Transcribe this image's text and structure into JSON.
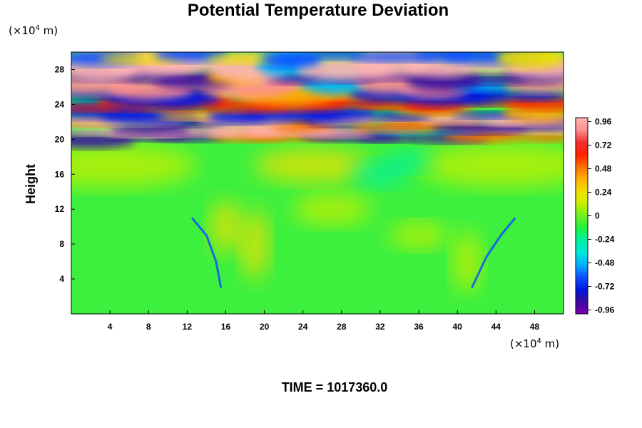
{
  "chart_data": {
    "type": "heatmap",
    "title": "Potential Temperature Deviation",
    "ylabel": "Height",
    "x_unit_prefix": "(×10",
    "x_unit_exp": "4",
    "x_unit_suffix": " m)",
    "y_unit_prefix": "(×10",
    "y_unit_exp": "4",
    "y_unit_suffix": " m)",
    "xlim": [
      0,
      51
    ],
    "ylim": [
      0,
      30
    ],
    "x_ticks": [
      "4",
      "8",
      "12",
      "16",
      "20",
      "24",
      "28",
      "32",
      "36",
      "40",
      "44",
      "48"
    ],
    "y_ticks": [
      "4",
      "8",
      "12",
      "16",
      "20",
      "24",
      "28"
    ],
    "colorbar": {
      "min": -1.0,
      "max": 1.0,
      "tick_values": [
        0.96,
        0.72,
        0.48,
        0.24,
        0,
        -0.24,
        -0.48,
        -0.72,
        -0.96
      ],
      "tick_labels": [
        "0.96",
        "0.72",
        "0.48",
        "0.24",
        "0",
        "-0.24",
        "-0.48",
        "-0.72",
        "-0.96"
      ],
      "colors_low_to_high": [
        "#7a00b0",
        "#3a0aa0",
        "#0016e0",
        "#1050ff",
        "#00b0ff",
        "#00e8d8",
        "#00f0a0",
        "#20f040",
        "#6ef020",
        "#c8f000",
        "#f0e000",
        "#ffb000",
        "#ff7000",
        "#ff2000",
        "#f03030",
        "#ff9090",
        "#ffb4b4"
      ]
    },
    "footer": "TIME = 1017360.0"
  },
  "colors": {
    "background": "#ffffff",
    "text": "#000000",
    "base_field": "#3ef03e"
  }
}
